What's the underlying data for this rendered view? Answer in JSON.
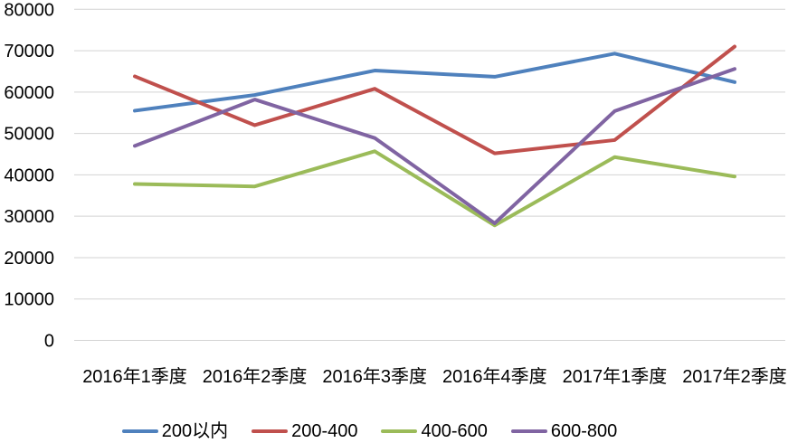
{
  "chart_data": {
    "type": "line",
    "title": "",
    "xlabel": "",
    "ylabel": "",
    "categories": [
      "2016年1季度",
      "2016年2季度",
      "2016年3季度",
      "2016年4季度",
      "2017年1季度",
      "2017年2季度"
    ],
    "series": [
      {
        "name": "200以内",
        "color": "#4F81BD",
        "values": [
          55500,
          59300,
          65200,
          63700,
          69300,
          62400
        ]
      },
      {
        "name": "200-400",
        "color": "#C0504D",
        "values": [
          63800,
          52000,
          60800,
          45200,
          48400,
          71000
        ]
      },
      {
        "name": "400-600",
        "color": "#9BBB59",
        "values": [
          37800,
          37200,
          45700,
          27800,
          44300,
          39600
        ]
      },
      {
        "name": "600-800",
        "color": "#8064A2",
        "values": [
          47000,
          58200,
          48900,
          28300,
          55400,
          65600
        ]
      }
    ],
    "ylim": [
      0,
      80000
    ],
    "ytick_step": 10000,
    "yticks": [
      0,
      10000,
      20000,
      30000,
      40000,
      50000,
      60000,
      70000,
      80000
    ],
    "grid": true,
    "gridline_color": "#D3D3D3",
    "background_color": "#FFFFFF",
    "text_color": "#000000",
    "legend_position": "bottom"
  }
}
